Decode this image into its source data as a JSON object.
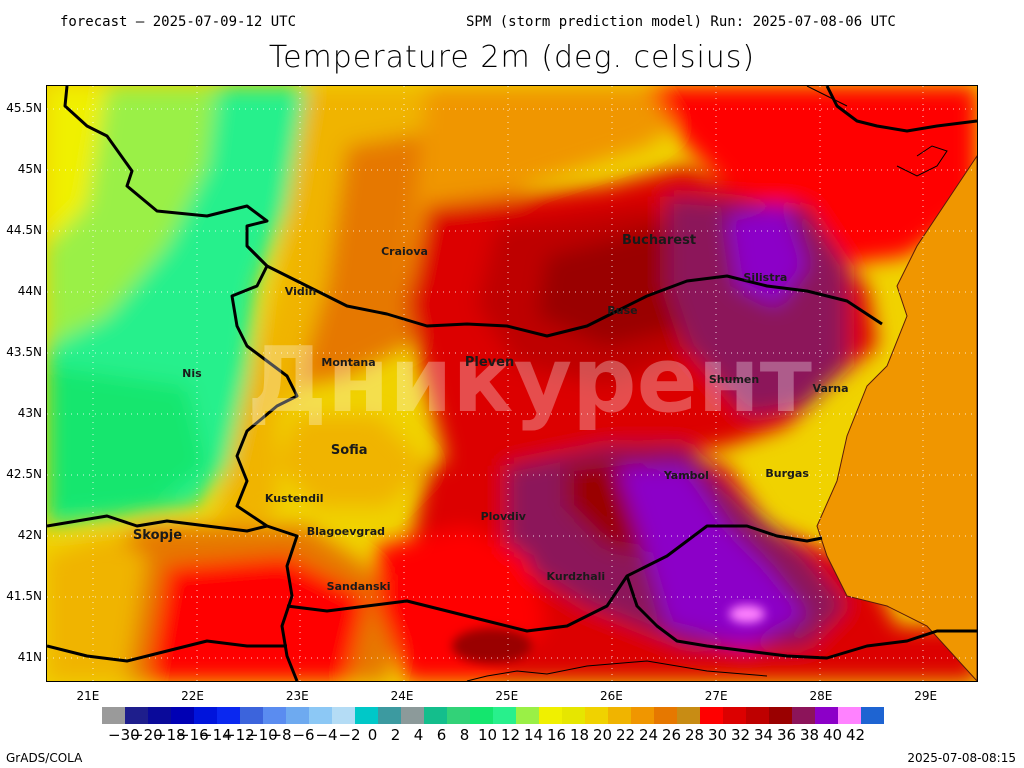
{
  "header": {
    "forecast": "forecast – 2025-07-09-12 UTC",
    "run": "SPM (storm prediction model) Run: 2025-07-08-06 UTC",
    "title": "Temperature 2m (deg. celsius)"
  },
  "watermark": "Дникурент",
  "axes": {
    "lat_labels": [
      "45.5N",
      "45N",
      "44.5N",
      "44N",
      "43.5N",
      "43N",
      "42.5N",
      "42N",
      "41.5N",
      "41N"
    ],
    "lon_labels": [
      "21E",
      "22E",
      "23E",
      "24E",
      "25E",
      "26E",
      "27E",
      "28E",
      "29E"
    ],
    "lat_range": [
      40.8,
      45.7
    ],
    "lon_range": [
      20.6,
      29.5
    ]
  },
  "cities": [
    {
      "name": "Bucharest",
      "lon": 26.1,
      "lat": 44.42,
      "big": true
    },
    {
      "name": "Craiova",
      "lon": 23.8,
      "lat": 44.32
    },
    {
      "name": "Vidin",
      "lon": 22.88,
      "lat": 43.99
    },
    {
      "name": "Silistra",
      "lon": 27.26,
      "lat": 44.11
    },
    {
      "name": "Ruse",
      "lon": 25.96,
      "lat": 43.84
    },
    {
      "name": "Montana",
      "lon": 23.23,
      "lat": 43.41
    },
    {
      "name": "Pleven",
      "lon": 24.6,
      "lat": 43.42,
      "big": true
    },
    {
      "name": "Nis",
      "lon": 21.9,
      "lat": 43.32
    },
    {
      "name": "Shumen",
      "lon": 26.93,
      "lat": 43.27
    },
    {
      "name": "Varna",
      "lon": 27.92,
      "lat": 43.2
    },
    {
      "name": "Sofia",
      "lon": 23.32,
      "lat": 42.7,
      "big": true
    },
    {
      "name": "Yambol",
      "lon": 26.5,
      "lat": 42.48
    },
    {
      "name": "Burgas",
      "lon": 27.47,
      "lat": 42.5
    },
    {
      "name": "Kustendil",
      "lon": 22.69,
      "lat": 42.29
    },
    {
      "name": "Plovdiv",
      "lon": 24.75,
      "lat": 42.15
    },
    {
      "name": "Skopje",
      "lon": 21.43,
      "lat": 42.0,
      "big": true
    },
    {
      "name": "Blagoevgrad",
      "lon": 23.09,
      "lat": 42.02
    },
    {
      "name": "Kurdzhali",
      "lon": 25.38,
      "lat": 41.65
    },
    {
      "name": "Sandanski",
      "lon": 23.28,
      "lat": 41.57
    }
  ],
  "colorbar": {
    "colors": [
      "#9a9a9a",
      "#1e1e8c",
      "#0a0a9a",
      "#0000b4",
      "#0014dc",
      "#0a28f0",
      "#3c64dc",
      "#5a8cf0",
      "#6eaaf0",
      "#8cc8f5",
      "#b4dcf5",
      "#00c8c8",
      "#3c9aa0",
      "#8c9a9a",
      "#14be8c",
      "#32d278",
      "#14e66e",
      "#28f08c",
      "#9af046",
      "#f0f000",
      "#e6e600",
      "#f0d200",
      "#f0b400",
      "#f09600",
      "#e67800",
      "#c88c14",
      "#ff0000",
      "#dc0000",
      "#be0000",
      "#9a0000",
      "#8c145a",
      "#8c00c8",
      "#ff82ff",
      "#1e64d2"
    ],
    "labels": [
      "−30",
      "−20",
      "−18",
      "−16",
      "−14",
      "−12",
      "−10",
      "−8",
      "−6",
      "−4",
      "−2",
      "0",
      "2",
      "4",
      "6",
      "8",
      "10",
      "12",
      "14",
      "16",
      "18",
      "20",
      "22",
      "24",
      "26",
      "28",
      "30",
      "32",
      "34",
      "36",
      "38",
      "40",
      "42"
    ]
  },
  "footer": {
    "left": "GrADS/COLA",
    "right": "2025-07-08-08:15"
  }
}
